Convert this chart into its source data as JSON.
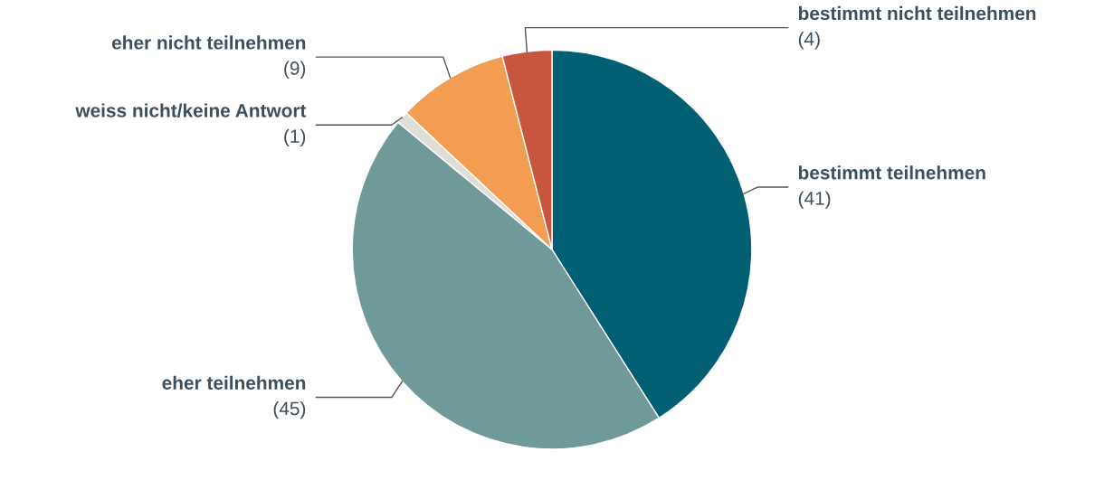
{
  "chart_data": {
    "type": "pie",
    "categories": [
      "bestimmt teilnehmen",
      "eher teilnehmen",
      "weiss nicht/keine Antwort",
      "eher nicht teilnehmen",
      "bestimmt nicht teilnehmen"
    ],
    "values": [
      41,
      45,
      1,
      9,
      4
    ],
    "value_labels": [
      "(41)",
      "(45)",
      "(1)",
      "(9)",
      "(4)"
    ],
    "colors": [
      "#005f73",
      "#709a99",
      "#e0dcd6",
      "#f29d52",
      "#c8553d"
    ]
  }
}
